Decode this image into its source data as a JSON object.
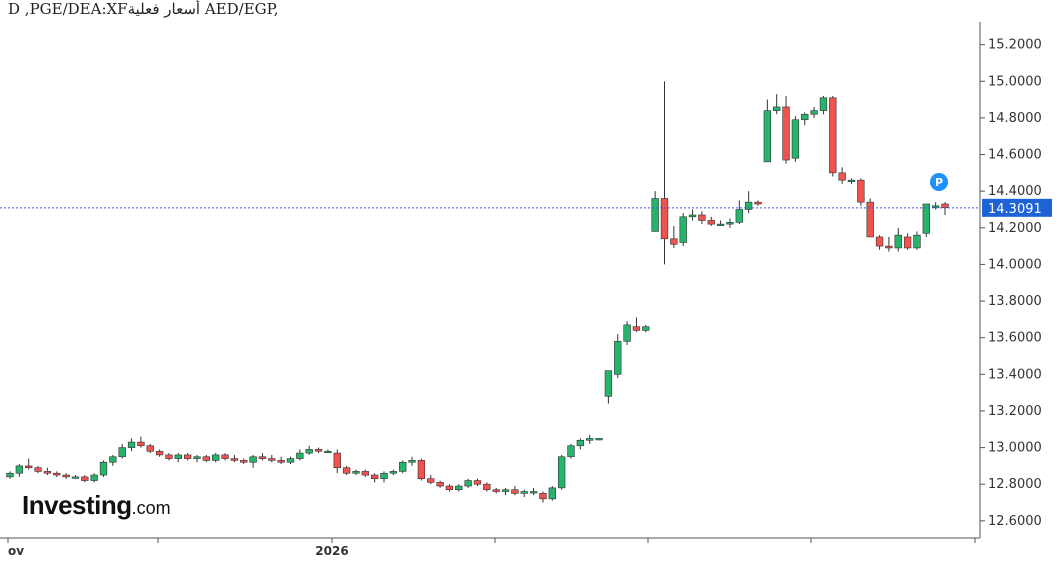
{
  "title": "D ,PGE/DEA:XFأسعار فعلية AED/EGP,",
  "logo": {
    "main": "Investing",
    "tld": ".com"
  },
  "colors": {
    "up": "#26b36b",
    "down": "#f0534f",
    "wick": "#333333",
    "price_line": "#3b5bdb",
    "badge": "#1e63d6",
    "p_badge": "#1e90ff"
  },
  "chart_data": {
    "type": "candlestick",
    "ylim": [
      12.55,
      15.28
    ],
    "yticks": [
      "15.2000",
      "15.0000",
      "14.8000",
      "14.6000",
      "14.4000",
      "14.2000",
      "14.0000",
      "13.8000",
      "13.6000",
      "13.4000",
      "13.2000",
      "13.0000",
      "12.8000",
      "12.6000"
    ],
    "xticks": [
      "ov",
      "",
      "2026",
      "",
      "",
      "",
      "",
      ""
    ],
    "last_price": "14.3091",
    "marker": "P",
    "candles": [
      [
        12.84,
        12.87,
        12.83,
        12.86
      ],
      [
        12.86,
        12.91,
        12.84,
        12.9
      ],
      [
        12.9,
        12.94,
        12.88,
        12.89
      ],
      [
        12.89,
        12.9,
        12.86,
        12.87
      ],
      [
        12.87,
        12.89,
        12.85,
        12.86
      ],
      [
        12.86,
        12.87,
        12.84,
        12.85
      ],
      [
        12.85,
        12.86,
        12.83,
        12.84
      ],
      [
        12.84,
        12.85,
        12.83,
        12.84
      ],
      [
        12.84,
        12.85,
        12.81,
        12.82
      ],
      [
        12.82,
        12.86,
        12.81,
        12.85
      ],
      [
        12.85,
        12.93,
        12.84,
        12.92
      ],
      [
        12.92,
        12.96,
        12.9,
        12.95
      ],
      [
        12.95,
        13.02,
        12.94,
        13.0
      ],
      [
        13.0,
        13.05,
        12.98,
        13.03
      ],
      [
        13.03,
        13.06,
        13.0,
        13.01
      ],
      [
        13.01,
        13.02,
        12.97,
        12.98
      ],
      [
        12.98,
        12.99,
        12.95,
        12.96
      ],
      [
        12.96,
        12.97,
        12.93,
        12.94
      ],
      [
        12.94,
        12.97,
        12.92,
        12.96
      ],
      [
        12.96,
        12.97,
        12.93,
        12.94
      ],
      [
        12.94,
        12.96,
        12.92,
        12.95
      ],
      [
        12.95,
        12.96,
        12.92,
        12.93
      ],
      [
        12.93,
        12.97,
        12.92,
        12.96
      ],
      [
        12.96,
        12.97,
        12.93,
        12.94
      ],
      [
        12.94,
        12.96,
        12.92,
        12.93
      ],
      [
        12.93,
        12.94,
        12.91,
        12.92
      ],
      [
        12.92,
        12.96,
        12.89,
        12.95
      ],
      [
        12.95,
        12.97,
        12.93,
        12.94
      ],
      [
        12.94,
        12.96,
        12.92,
        12.93
      ],
      [
        12.93,
        12.95,
        12.91,
        12.92
      ],
      [
        12.92,
        12.95,
        12.91,
        12.94
      ],
      [
        12.94,
        12.99,
        12.93,
        12.97
      ],
      [
        12.97,
        13.01,
        12.96,
        12.99
      ],
      [
        12.99,
        13.0,
        12.97,
        12.98
      ],
      [
        12.98,
        12.99,
        12.97,
        12.98
      ],
      [
        12.97,
        12.99,
        12.86,
        12.89
      ],
      [
        12.89,
        12.9,
        12.85,
        12.86
      ],
      [
        12.86,
        12.88,
        12.85,
        12.87
      ],
      [
        12.87,
        12.88,
        12.84,
        12.85
      ],
      [
        12.85,
        12.86,
        12.81,
        12.83
      ],
      [
        12.83,
        12.87,
        12.81,
        12.86
      ],
      [
        12.86,
        12.88,
        12.85,
        12.87
      ],
      [
        12.87,
        12.93,
        12.86,
        12.92
      ],
      [
        12.92,
        12.95,
        12.9,
        12.93
      ],
      [
        12.93,
        12.94,
        12.82,
        12.83
      ],
      [
        12.83,
        12.85,
        12.8,
        12.81
      ],
      [
        12.81,
        12.82,
        12.78,
        12.79
      ],
      [
        12.79,
        12.8,
        12.76,
        12.77
      ],
      [
        12.77,
        12.8,
        12.76,
        12.79
      ],
      [
        12.79,
        12.83,
        12.78,
        12.82
      ],
      [
        12.82,
        12.83,
        12.79,
        12.8
      ],
      [
        12.8,
        12.81,
        12.76,
        12.77
      ],
      [
        12.77,
        12.78,
        12.75,
        12.76
      ],
      [
        12.76,
        12.78,
        12.74,
        12.77
      ],
      [
        12.77,
        12.79,
        12.74,
        12.75
      ],
      [
        12.75,
        12.77,
        12.73,
        12.76
      ],
      [
        12.76,
        12.78,
        12.74,
        12.76
      ],
      [
        12.75,
        12.76,
        12.7,
        12.72
      ],
      [
        12.72,
        12.79,
        12.71,
        12.78
      ],
      [
        12.78,
        12.96,
        12.77,
        12.95
      ],
      [
        12.95,
        13.02,
        12.94,
        13.01
      ],
      [
        13.01,
        13.05,
        12.99,
        13.04
      ],
      [
        13.04,
        13.07,
        13.02,
        13.05
      ],
      [
        13.05,
        13.05,
        13.04,
        13.05
      ],
      [
        13.28,
        13.42,
        13.24,
        13.42
      ],
      [
        13.4,
        13.62,
        13.38,
        13.58
      ],
      [
        13.58,
        13.69,
        13.56,
        13.67
      ],
      [
        13.66,
        13.71,
        13.63,
        13.64
      ],
      [
        13.64,
        13.67,
        13.63,
        13.66
      ],
      [
        14.18,
        14.4,
        14.18,
        14.36
      ],
      [
        14.36,
        15.0,
        14.0,
        14.14
      ],
      [
        14.14,
        14.21,
        14.09,
        14.11
      ],
      [
        14.12,
        14.28,
        14.1,
        14.26
      ],
      [
        14.26,
        14.3,
        14.24,
        14.27
      ],
      [
        14.27,
        14.29,
        14.22,
        14.24
      ],
      [
        14.24,
        14.26,
        14.21,
        14.22
      ],
      [
        14.22,
        14.24,
        14.21,
        14.22
      ],
      [
        14.22,
        14.25,
        14.2,
        14.23
      ],
      [
        14.23,
        14.35,
        14.22,
        14.3
      ],
      [
        14.3,
        14.4,
        14.28,
        14.34
      ],
      [
        14.34,
        14.35,
        14.32,
        14.33
      ],
      [
        14.56,
        14.9,
        14.56,
        14.84
      ],
      [
        14.84,
        14.93,
        14.82,
        14.86
      ],
      [
        14.86,
        14.92,
        14.55,
        14.57
      ],
      [
        14.58,
        14.81,
        14.56,
        14.79
      ],
      [
        14.79,
        14.83,
        14.76,
        14.82
      ],
      [
        14.82,
        14.86,
        14.8,
        14.84
      ],
      [
        14.84,
        14.92,
        14.82,
        14.91
      ],
      [
        14.91,
        14.92,
        14.48,
        14.5
      ],
      [
        14.5,
        14.53,
        14.44,
        14.46
      ],
      [
        14.46,
        14.47,
        14.44,
        14.46
      ],
      [
        14.46,
        14.47,
        14.32,
        14.34
      ],
      [
        14.34,
        14.36,
        14.15,
        14.15
      ],
      [
        14.15,
        14.16,
        14.08,
        14.1
      ],
      [
        14.1,
        14.15,
        14.07,
        14.09
      ],
      [
        14.09,
        14.2,
        14.07,
        14.16
      ],
      [
        14.15,
        14.17,
        14.08,
        14.09
      ],
      [
        14.09,
        14.18,
        14.08,
        14.16
      ],
      [
        14.17,
        14.33,
        14.15,
        14.33
      ],
      [
        14.31,
        14.34,
        14.3,
        14.32
      ],
      [
        14.33,
        14.34,
        14.27,
        14.31
      ]
    ]
  }
}
